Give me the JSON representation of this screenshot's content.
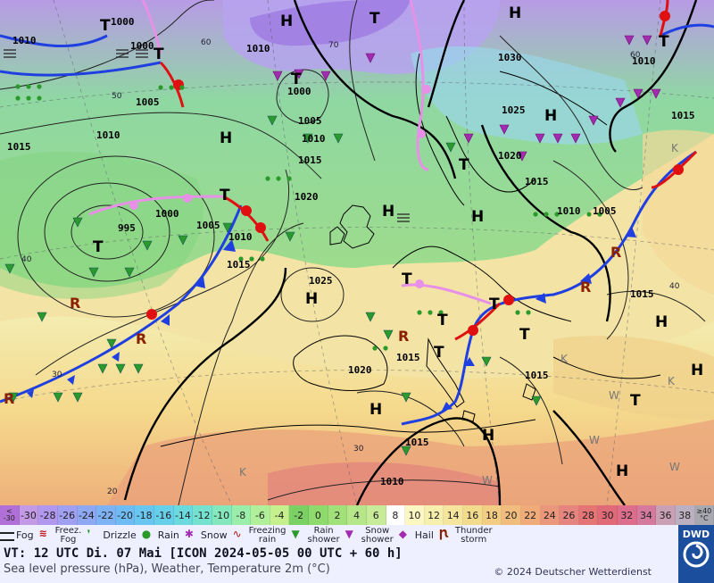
{
  "map": {
    "pressure_labels": [
      {
        "v": "1000"
      },
      {
        "v": "1000"
      },
      {
        "v": "1005"
      },
      {
        "v": "1010"
      },
      {
        "v": "1015"
      },
      {
        "v": "1010"
      },
      {
        "v": "1000"
      },
      {
        "v": "1005"
      },
      {
        "v": "1010"
      },
      {
        "v": "1015"
      },
      {
        "v": "1020"
      },
      {
        "v": "1000"
      },
      {
        "v": "995"
      },
      {
        "v": "1005"
      },
      {
        "v": "1010"
      },
      {
        "v": "1015"
      },
      {
        "v": "1025"
      },
      {
        "v": "1030"
      },
      {
        "v": "1025"
      },
      {
        "v": "1020"
      },
      {
        "v": "1015"
      },
      {
        "v": "1010"
      },
      {
        "v": "1005"
      },
      {
        "v": "1010"
      },
      {
        "v": "1015"
      },
      {
        "v": "1015"
      },
      {
        "v": "1020"
      },
      {
        "v": "1015"
      },
      {
        "v": "1015"
      },
      {
        "v": "1015"
      },
      {
        "v": "1010"
      },
      {
        "v": "1010"
      }
    ],
    "highs": [
      "H",
      "H",
      "H",
      "H",
      "H",
      "H",
      "H",
      "H",
      "H",
      "H",
      "H",
      "H"
    ],
    "lows": [
      "T",
      "T",
      "T",
      "T",
      "T",
      "T",
      "T",
      "T",
      "T",
      "T",
      "T",
      "T",
      "T",
      "T"
    ],
    "lat_labels": [
      "60",
      "70",
      "50",
      "40",
      "30",
      "30",
      "20",
      "40",
      "60"
    ],
    "rain_letter": "R",
    "k_letters": [
      "K",
      "K",
      "K",
      "K"
    ],
    "w_letters": [
      "W",
      "W",
      "W",
      "W"
    ]
  },
  "scale": {
    "first": {
      "top": "<",
      "bottom": "-30"
    },
    "values": [
      "-30",
      "-28",
      "-26",
      "-24",
      "-22",
      "-20",
      "-18",
      "-16",
      "-14",
      "-12",
      "-10",
      "-8",
      "-6",
      "-4",
      "-2",
      "0",
      "2",
      "4",
      "6",
      "8",
      "10",
      "12",
      "14",
      "16",
      "18",
      "20",
      "22",
      "24",
      "26",
      "28",
      "30",
      "32",
      "34",
      "36",
      "38"
    ],
    "last": {
      "top": "≥40",
      "bottom": "°C"
    },
    "colors": [
      "#b070d8",
      "#c39ae6",
      "#b197ee",
      "#9fa0f2",
      "#8ea8f4",
      "#7db2f5",
      "#6fbcf4",
      "#68c6f0",
      "#66d0ea",
      "#6bdade",
      "#74e2cf",
      "#85e8bd",
      "#9aeeaa",
      "#b1f09a",
      "#c6f08e",
      "#7ad062",
      "#8fda6c",
      "#a2e07a",
      "#b6e68a",
      "#c7eb98",
      "#ffffff",
      "#fbf6c2",
      "#f7efae",
      "#f5e59d",
      "#f3db8d",
      "#f3cd83",
      "#f1bd7e",
      "#ef ab7a",
      "#eb977c",
      "#e6847f",
      "#e57474",
      "#e06a77",
      "#dc6e8b",
      "#d57a9c",
      "#c9a0b4",
      "#bbb0c0",
      "#a8a8b0"
    ]
  },
  "legend": [
    {
      "icon": "fog-icon",
      "label": "Fog"
    },
    {
      "icon": "freezing-fog-icon",
      "label": "Freez.\nFog"
    },
    {
      "icon": "drizzle-icon",
      "label": "Drizzle"
    },
    {
      "icon": "rain-icon",
      "label": "Rain"
    },
    {
      "icon": "snow-icon",
      "label": "Snow"
    },
    {
      "icon": "freezing-rain-icon",
      "label": "Freezing\nrain"
    },
    {
      "icon": "rain-shower-icon",
      "label": "Rain\nshower"
    },
    {
      "icon": "snow-shower-icon",
      "label": "Snow\nshower"
    },
    {
      "icon": "hail-icon",
      "label": "Hail"
    },
    {
      "icon": "thunderstorm-icon",
      "label": "Thunder\nstorm"
    }
  ],
  "info": {
    "vt": "VT: 12 UTC Di.  07 Mai [ICON 2024-05-05  00 UTC + 60 h]",
    "description": "Sea level pressure (hPa), Weather, Temperature 2m (°C)",
    "copyright": "© 2024 Deutscher Wetterdienst"
  },
  "logo": {
    "text": "DWD"
  }
}
